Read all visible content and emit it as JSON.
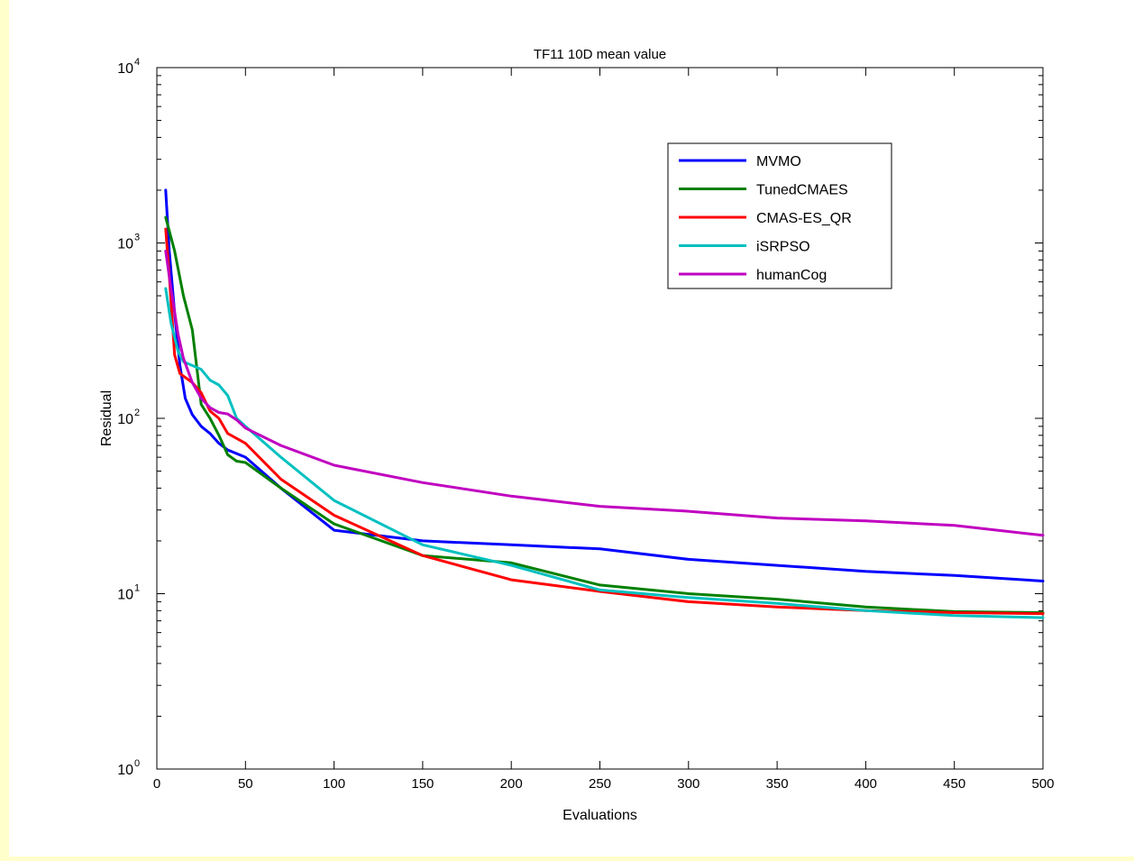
{
  "chart_data": {
    "type": "line",
    "title": "TF11 10D mean value",
    "xlabel": "Evaluations",
    "ylabel": "Residual",
    "xlim": [
      0,
      500
    ],
    "ylim": [
      1,
      10000
    ],
    "yscale": "log",
    "xticks": [
      0,
      50,
      100,
      150,
      200,
      250,
      300,
      350,
      400,
      450,
      500
    ],
    "yticks": [
      {
        "value": 1,
        "base": "10",
        "exp": "0"
      },
      {
        "value": 10,
        "base": "10",
        "exp": "1"
      },
      {
        "value": 100,
        "base": "10",
        "exp": "2"
      },
      {
        "value": 1000,
        "base": "10",
        "exp": "3"
      },
      {
        "value": 10000,
        "base": "10",
        "exp": "4"
      }
    ],
    "grid": false,
    "legend_position": "top-right",
    "series": [
      {
        "name": "MVMO",
        "color": "#0000ff",
        "points": [
          [
            5,
            2000
          ],
          [
            7,
            900
          ],
          [
            10,
            400
          ],
          [
            13,
            200
          ],
          [
            16,
            130
          ],
          [
            20,
            105
          ],
          [
            25,
            90
          ],
          [
            30,
            82
          ],
          [
            35,
            72
          ],
          [
            40,
            66
          ],
          [
            50,
            60
          ],
          [
            70,
            40
          ],
          [
            100,
            23
          ],
          [
            150,
            20
          ],
          [
            200,
            19
          ],
          [
            250,
            18
          ],
          [
            300,
            15.7
          ],
          [
            350,
            14.5
          ],
          [
            400,
            13.4
          ],
          [
            450,
            12.7
          ],
          [
            500,
            11.8
          ]
        ]
      },
      {
        "name": "TunedCMAES",
        "color": "#008000",
        "points": [
          [
            5,
            1400
          ],
          [
            10,
            900
          ],
          [
            15,
            500
          ],
          [
            20,
            320
          ],
          [
            25,
            120
          ],
          [
            30,
            100
          ],
          [
            35,
            80
          ],
          [
            40,
            62
          ],
          [
            45,
            57
          ],
          [
            50,
            56
          ],
          [
            70,
            40
          ],
          [
            100,
            25
          ],
          [
            150,
            16.5
          ],
          [
            200,
            15
          ],
          [
            250,
            11.2
          ],
          [
            300,
            10
          ],
          [
            350,
            9.3
          ],
          [
            400,
            8.4
          ],
          [
            450,
            7.9
          ],
          [
            500,
            7.8
          ]
        ]
      },
      {
        "name": "CMAS-ES_QR",
        "color": "#ff0000",
        "points": [
          [
            5,
            1200
          ],
          [
            7,
            650
          ],
          [
            10,
            230
          ],
          [
            13,
            180
          ],
          [
            20,
            160
          ],
          [
            25,
            140
          ],
          [
            30,
            110
          ],
          [
            35,
            100
          ],
          [
            40,
            82
          ],
          [
            50,
            72
          ],
          [
            70,
            45
          ],
          [
            100,
            28
          ],
          [
            150,
            16.5
          ],
          [
            200,
            12
          ],
          [
            250,
            10.3
          ],
          [
            300,
            9
          ],
          [
            350,
            8.4
          ],
          [
            400,
            8
          ],
          [
            450,
            7.8
          ],
          [
            500,
            7.7
          ]
        ]
      },
      {
        "name": "iSRPSO",
        "color": "#00c0c0",
        "points": [
          [
            5,
            550
          ],
          [
            8,
            350
          ],
          [
            12,
            240
          ],
          [
            15,
            210
          ],
          [
            20,
            200
          ],
          [
            25,
            190
          ],
          [
            30,
            165
          ],
          [
            35,
            155
          ],
          [
            40,
            135
          ],
          [
            45,
            100
          ],
          [
            50,
            90
          ],
          [
            70,
            60
          ],
          [
            100,
            34
          ],
          [
            150,
            19
          ],
          [
            200,
            14.5
          ],
          [
            250,
            10.5
          ],
          [
            300,
            9.5
          ],
          [
            350,
            8.8
          ],
          [
            400,
            8
          ],
          [
            450,
            7.5
          ],
          [
            500,
            7.3
          ]
        ]
      },
      {
        "name": "humanCog",
        "color": "#c000c0",
        "points": [
          [
            5,
            900
          ],
          [
            8,
            550
          ],
          [
            12,
            300
          ],
          [
            15,
            220
          ],
          [
            20,
            160
          ],
          [
            25,
            130
          ],
          [
            30,
            115
          ],
          [
            35,
            108
          ],
          [
            40,
            106
          ],
          [
            45,
            98
          ],
          [
            50,
            88
          ],
          [
            70,
            70
          ],
          [
            100,
            54
          ],
          [
            150,
            43
          ],
          [
            200,
            36
          ],
          [
            250,
            31.5
          ],
          [
            300,
            29.5
          ],
          [
            350,
            27
          ],
          [
            400,
            26
          ],
          [
            450,
            24.5
          ],
          [
            500,
            21.5
          ]
        ]
      }
    ]
  }
}
